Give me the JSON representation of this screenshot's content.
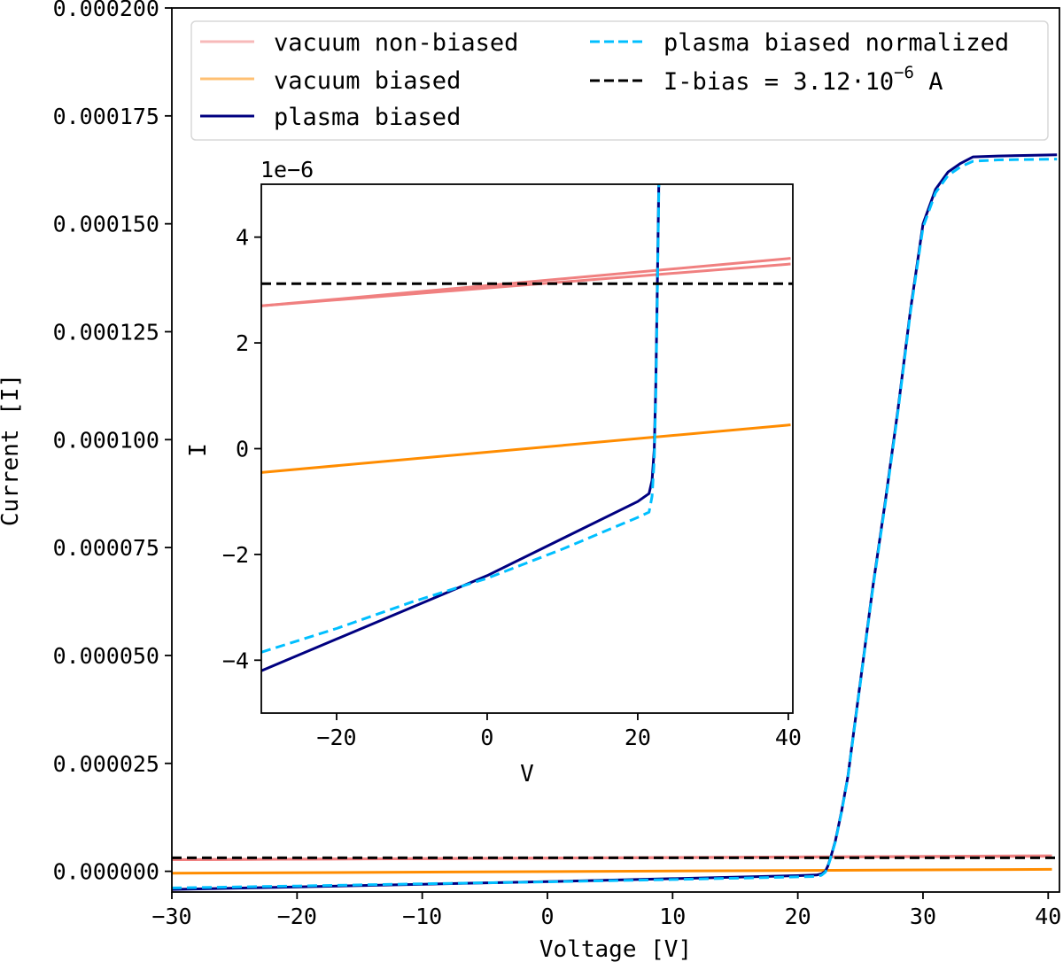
{
  "chart_data": {
    "type": "line",
    "main": {
      "xlabel": "Voltage [V]",
      "ylabel": "Current [I]",
      "xlim": [
        -30,
        40.9
      ],
      "ylim": [
        -4.8e-06,
        0.0002
      ],
      "xticks": [
        -30,
        -20,
        -10,
        0,
        10,
        20,
        30,
        40
      ],
      "xtick_labels": [
        "−30",
        "−20",
        "−10",
        "0",
        "10",
        "20",
        "30",
        "40"
      ],
      "yticks": [
        0,
        2.5e-05,
        5e-05,
        7.5e-05,
        0.0001,
        0.000125,
        0.00015,
        0.000175,
        0.0002
      ],
      "ytick_labels": [
        "0.000000",
        "0.000025",
        "0.000050",
        "0.000075",
        "0.000100",
        "0.000125",
        "0.000150",
        "0.000175",
        "0.000200"
      ],
      "grid": false,
      "legend_placement": "top"
    },
    "inset": {
      "xlabel": "V",
      "ylabel": "I",
      "offset_text": "1e−6",
      "xlim": [
        -30,
        40.6
      ],
      "ylim": [
        -5e-06,
        5e-06
      ],
      "xticks": [
        -20,
        0,
        20,
        40
      ],
      "xtick_labels": [
        "−20",
        "0",
        "20",
        "40"
      ],
      "yticks": [
        4e-06,
        2e-06,
        0,
        -2e-06,
        -4e-06
      ],
      "ytick_labels": [
        "4",
        "2",
        "0",
        "−2",
        "−4"
      ],
      "grid": false
    },
    "series": [
      {
        "name": "vacuum non-biased",
        "color": "#f08080",
        "style": "solid",
        "x": [
          -30,
          40.3
        ],
        "y": [
          2.7e-06,
          3.6e-06
        ]
      },
      {
        "name": "vacuum biased",
        "color": "#ff8c00",
        "style": "solid",
        "x": [
          -30,
          40.3
        ],
        "y": [
          -4.5e-07,
          4.5e-07
        ]
      },
      {
        "name": "plasma biased",
        "color": "#000080",
        "style": "solid",
        "x": [
          -30,
          -20,
          -10,
          0,
          10,
          20,
          21.5,
          21.9,
          22.2,
          22.4,
          22.6,
          23,
          23.5,
          24,
          24.5,
          25,
          26,
          27,
          28,
          29,
          30,
          31,
          32,
          33,
          34,
          36,
          40.7
        ],
        "y": [
          -4.2e-06,
          -3.6e-06,
          -3e-06,
          -2.4e-06,
          -1.7e-06,
          -1e-06,
          -8.5e-07,
          -6e-07,
          0,
          1.2e-06,
          3e-06,
          7e-06,
          1.4e-05,
          2.2e-05,
          3.3e-05,
          4.4e-05,
          6.6e-05,
          8.6e-05,
          0.000107,
          0.00013,
          0.00015,
          0.000158,
          0.000162,
          0.000164,
          0.0001655,
          0.0001657,
          0.000166
        ]
      },
      {
        "name": "plasma biased normalized",
        "color": "#00bfff",
        "style": "dashed",
        "x": [
          -30,
          -20,
          -10,
          0,
          10,
          20,
          21.5,
          21.9,
          22.2,
          22.4,
          22.6,
          23,
          23.5,
          24,
          24.5,
          25,
          26,
          27,
          28,
          29,
          30,
          31,
          32,
          33,
          34,
          36,
          40.7
        ],
        "y": [
          -3.85e-06,
          -3.4e-06,
          -2.9e-06,
          -2.45e-06,
          -1.9e-06,
          -1.3e-06,
          -1.2e-06,
          -9e-07,
          -2e-07,
          1e-06,
          2.9e-06,
          6.8e-06,
          1.38e-05,
          2.18e-05,
          3.27e-05,
          4.37e-05,
          6.56e-05,
          8.55e-05,
          0.0001065,
          0.0001295,
          0.0001492,
          0.0001572,
          0.0001612,
          0.0001632,
          0.0001645,
          0.0001648,
          0.000165
        ]
      },
      {
        "name": "I-bias = 3.12·10⁻⁶ A",
        "legend_text": "I-bias = 3.12·10",
        "legend_sup": "−6",
        "legend_unit": " A",
        "color": "#000000",
        "style": "dashed",
        "x": [
          -30,
          40.9
        ],
        "y": [
          3.12e-06,
          3.12e-06
        ]
      }
    ]
  }
}
